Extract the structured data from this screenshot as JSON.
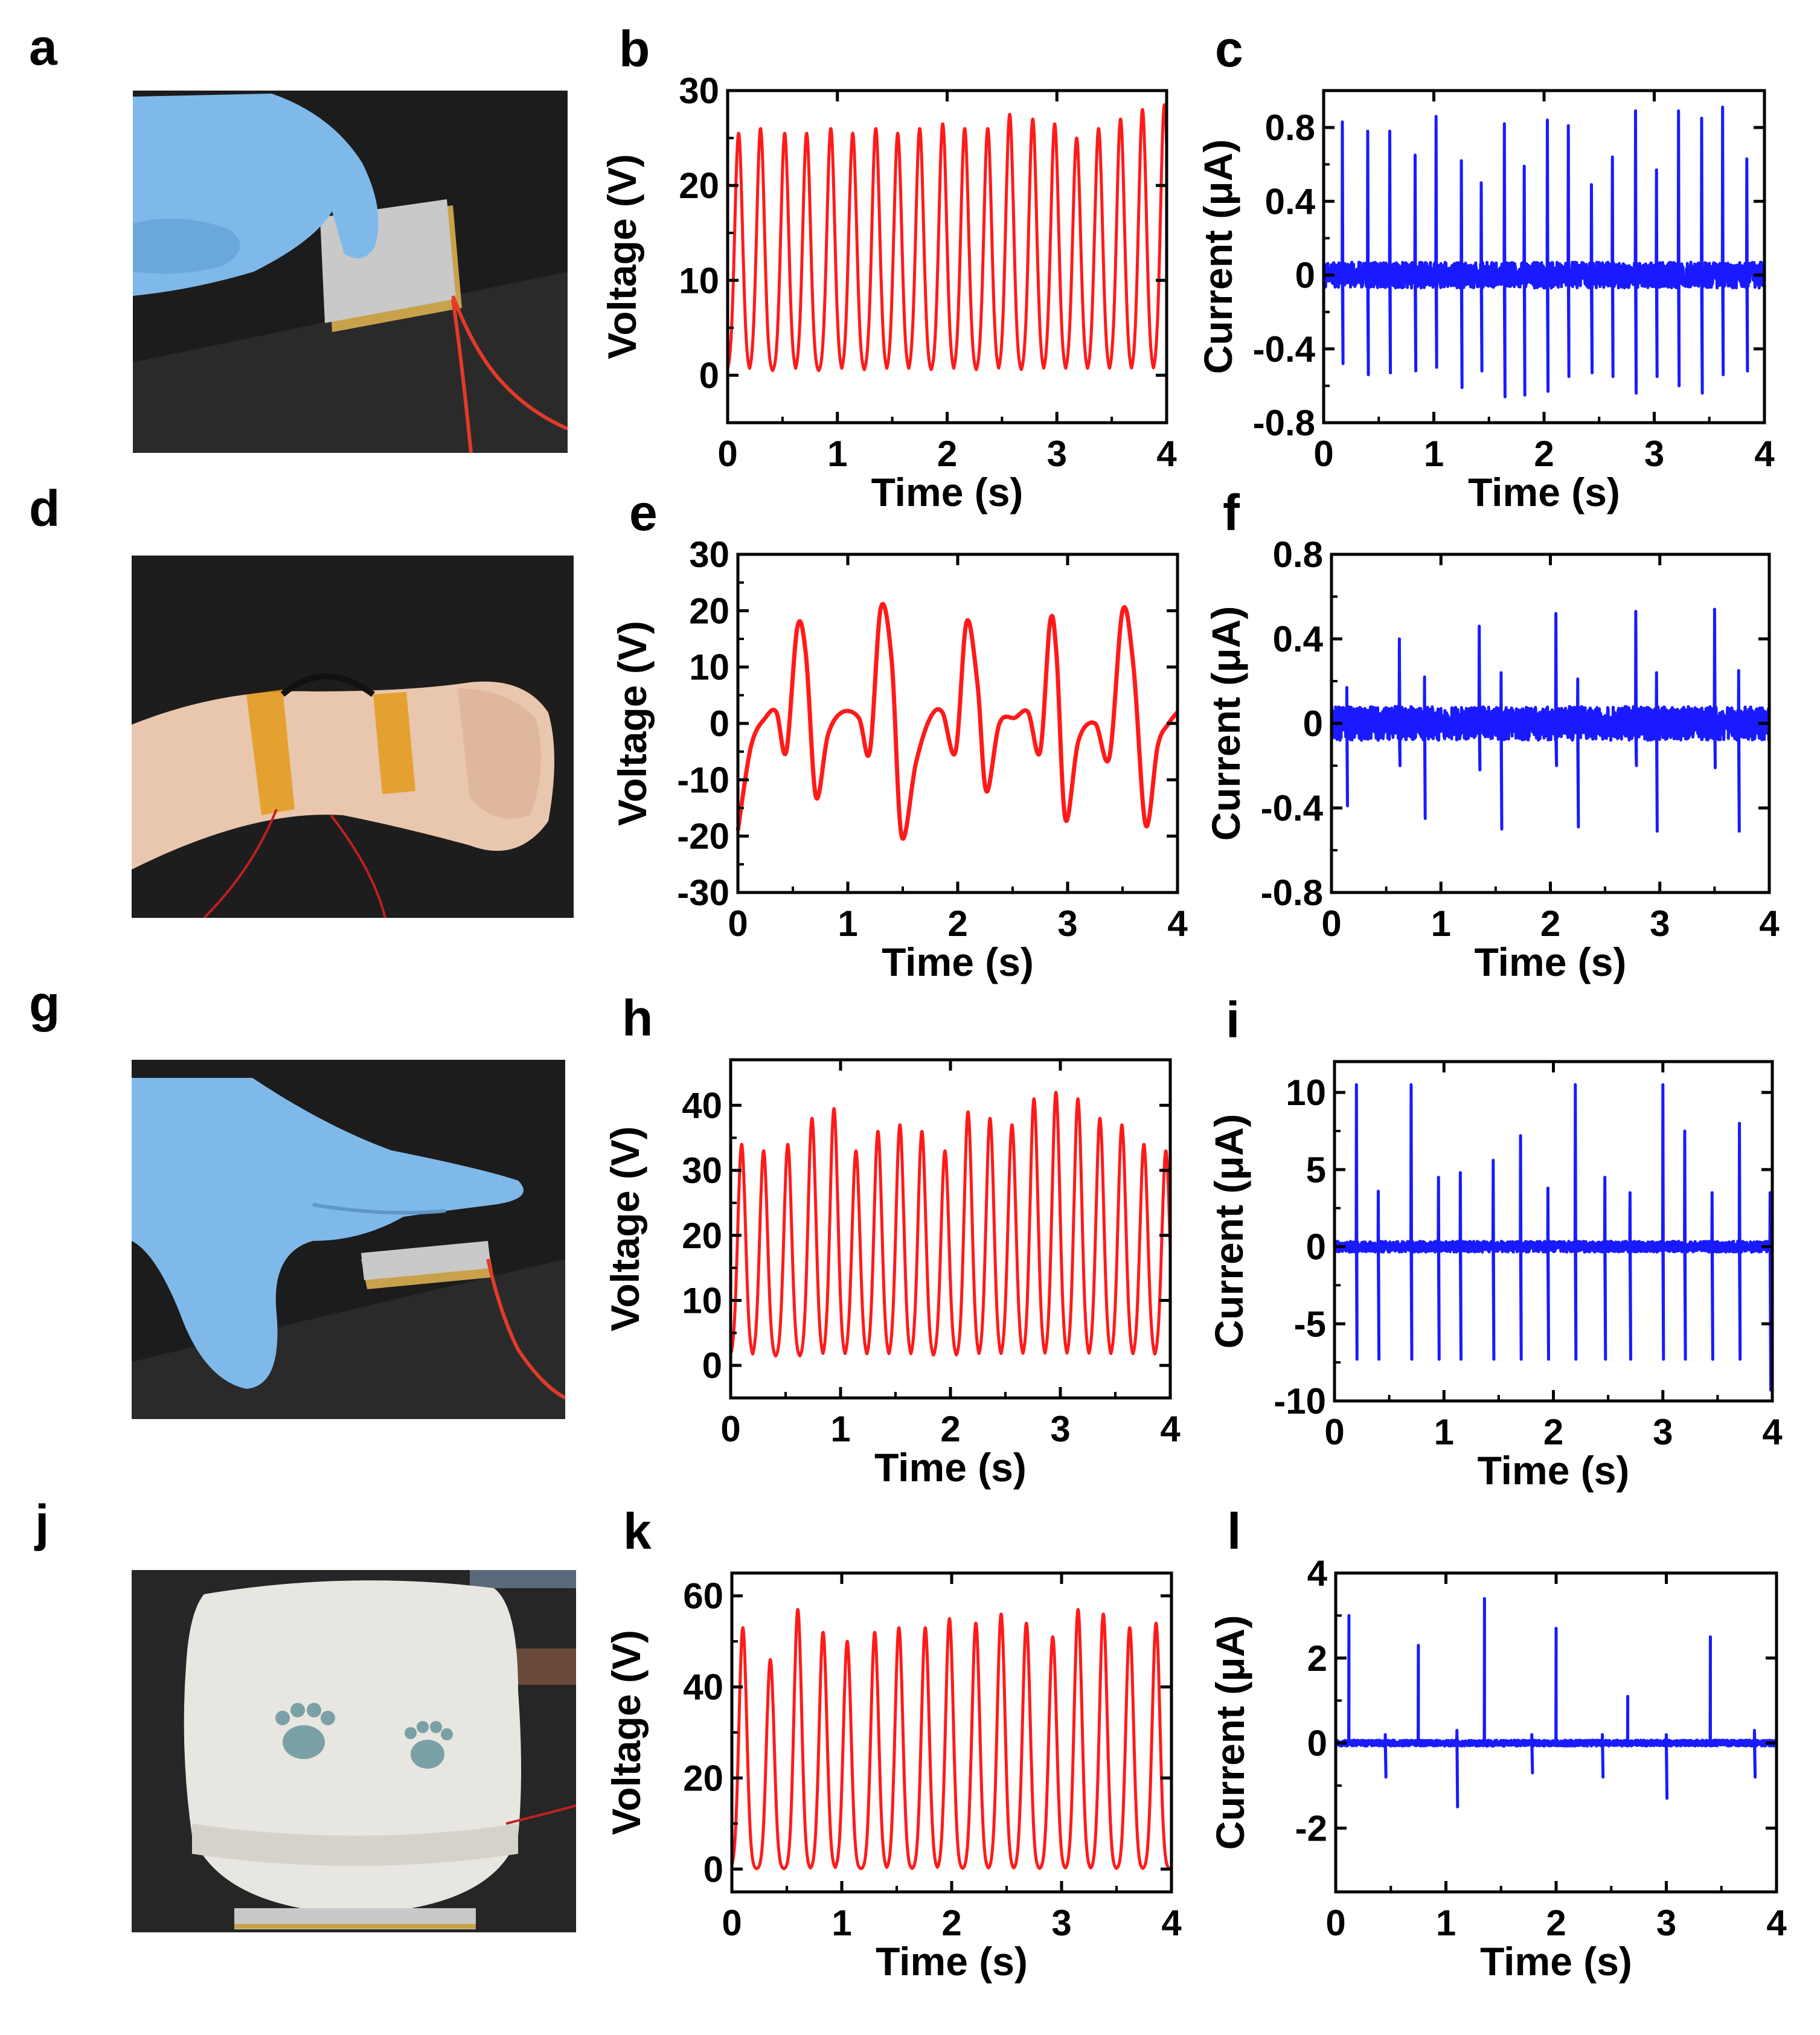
{
  "figure": {
    "colors": {
      "voltage_trace": "#ff1a1a",
      "current_trace": "#1a1aff",
      "axis": "#000000"
    },
    "panels": [
      {
        "id": "a",
        "label": "a",
        "kind": "photo",
        "content": "gloved-finger-pressing-device",
        "colors": {
          "background": "#1c1c1c",
          "glove": "#7fb9ea",
          "device": "#c9c9c9"
        }
      },
      {
        "id": "d",
        "label": "d",
        "kind": "photo",
        "content": "device-strapped-to-wrist",
        "colors": {
          "background": "#1d1d1d",
          "skin": "#e9c7ae",
          "tape": "#e39a1a"
        }
      },
      {
        "id": "g",
        "label": "g",
        "kind": "photo",
        "content": "gloved-palm-pressing-device",
        "colors": {
          "background": "#1c1c1c",
          "glove": "#7fb9ea",
          "device": "#c9c9c9"
        }
      },
      {
        "id": "j",
        "label": "j",
        "kind": "photo",
        "content": "shoe-heel-stepping-on-device",
        "colors": {
          "background": "#262626",
          "shoe": "#e8e6e0",
          "paw_print": "#7aa1a5"
        }
      }
    ]
  },
  "chart_data": [
    {
      "id": "b",
      "label": "b",
      "type": "line",
      "signal": "voltage",
      "xlabel": "Time (s)",
      "ylabel": "Voltage (V)",
      "xlim": [
        0,
        4
      ],
      "ylim": [
        -5,
        30
      ],
      "xticks": [
        0,
        1,
        2,
        3,
        4
      ],
      "yticks": [
        0,
        10,
        20,
        30
      ],
      "x_tick_labels": [
        "0",
        "1",
        "2",
        "3",
        "4"
      ],
      "y_tick_labels": [
        "0",
        "10",
        "20",
        "30"
      ],
      "shape": "pulse",
      "baseline": 0.3,
      "peak_times": [
        0.1,
        0.3,
        0.52,
        0.72,
        0.94,
        1.14,
        1.35,
        1.55,
        1.75,
        1.96,
        2.16,
        2.37,
        2.57,
        2.78,
        2.98,
        3.18,
        3.38,
        3.58,
        3.78,
        3.98
      ],
      "peak_values": [
        25.5,
        26,
        25.5,
        25.5,
        26,
        25.5,
        26,
        25.5,
        26,
        26.5,
        26,
        26,
        27.5,
        27,
        26.5,
        25,
        26,
        27,
        28,
        28.5
      ],
      "grid": false
    },
    {
      "id": "c",
      "label": "c",
      "type": "line",
      "signal": "current",
      "xlabel": "Time (s)",
      "ylabel": "Current (μA)",
      "xlim": [
        0,
        4
      ],
      "ylim": [
        -0.8,
        1.0
      ],
      "xticks": [
        0,
        1,
        2,
        3,
        4
      ],
      "yticks": [
        -0.8,
        -0.4,
        0,
        0.4,
        0.8
      ],
      "x_tick_labels": [
        "0",
        "1",
        "2",
        "3",
        "4"
      ],
      "y_tick_labels": [
        "-0.8",
        "-0.4",
        "0",
        "0.4",
        "0.8"
      ],
      "shape": "spike",
      "noise": 0.07,
      "events": [
        {
          "t": 0.17,
          "pos": 0.83,
          "neg": -0.48
        },
        {
          "t": 0.4,
          "pos": 0.78,
          "neg": -0.54
        },
        {
          "t": 0.6,
          "pos": 0.78,
          "neg": -0.53
        },
        {
          "t": 0.83,
          "pos": 0.65,
          "neg": -0.52
        },
        {
          "t": 1.02,
          "pos": 0.86,
          "neg": -0.5
        },
        {
          "t": 1.25,
          "pos": 0.62,
          "neg": -0.61
        },
        {
          "t": 1.43,
          "pos": 0.5,
          "neg": -0.52
        },
        {
          "t": 1.64,
          "pos": 0.82,
          "neg": -0.66
        },
        {
          "t": 1.82,
          "pos": 0.59,
          "neg": -0.65
        },
        {
          "t": 2.03,
          "pos": 0.84,
          "neg": -0.63
        },
        {
          "t": 2.22,
          "pos": 0.81,
          "neg": -0.55
        },
        {
          "t": 2.43,
          "pos": 0.49,
          "neg": -0.53
        },
        {
          "t": 2.62,
          "pos": 0.64,
          "neg": -0.55
        },
        {
          "t": 2.83,
          "pos": 0.89,
          "neg": -0.64
        },
        {
          "t": 3.02,
          "pos": 0.57,
          "neg": -0.55
        },
        {
          "t": 3.22,
          "pos": 0.89,
          "neg": -0.6
        },
        {
          "t": 3.43,
          "pos": 0.85,
          "neg": -0.64
        },
        {
          "t": 3.62,
          "pos": 0.91,
          "neg": -0.54
        },
        {
          "t": 3.84,
          "pos": 0.63,
          "neg": -0.52
        }
      ],
      "grid": false
    },
    {
      "id": "e",
      "label": "e",
      "type": "line",
      "signal": "voltage",
      "xlabel": "Time (s)",
      "ylabel": "Voltage (V)",
      "xlim": [
        0,
        4
      ],
      "ylim": [
        -30,
        30
      ],
      "xticks": [
        0,
        1,
        2,
        3,
        4
      ],
      "yticks": [
        -30,
        -20,
        -10,
        0,
        10,
        20,
        30
      ],
      "x_tick_labels": [
        "0",
        "1",
        "2",
        "3",
        "4"
      ],
      "y_tick_labels": [
        "-30",
        "-20",
        "-10",
        "0",
        "10",
        "20",
        "30"
      ],
      "shape": "keypoints",
      "x": [
        0,
        0.12,
        0.25,
        0.35,
        0.44,
        0.54,
        0.62,
        0.71,
        0.82,
        0.95,
        1.1,
        1.2,
        1.3,
        1.4,
        1.49,
        1.62,
        1.75,
        1.86,
        1.98,
        2.08,
        2.18,
        2.26,
        2.38,
        2.52,
        2.64,
        2.75,
        2.84,
        2.9,
        2.98,
        3.1,
        3.25,
        3.38,
        3.5,
        3.6,
        3.71,
        3.82,
        3.92,
        4.0
      ],
      "y": [
        -19,
        -4,
        1,
        2,
        -5,
        17,
        12,
        -13,
        -2,
        2,
        1,
        -5,
        20.5,
        11,
        -20,
        -7,
        1,
        2,
        -5,
        18,
        7,
        -12,
        0,
        1,
        2,
        -5,
        18,
        12,
        -17,
        -3,
        0,
        -6,
        20,
        10,
        -18,
        -4,
        0,
        2
      ],
      "grid": false
    },
    {
      "id": "f",
      "label": "f",
      "type": "line",
      "signal": "current",
      "xlabel": "Time (s)",
      "ylabel": "Current (μA)",
      "xlim": [
        0,
        4
      ],
      "ylim": [
        -0.8,
        0.8
      ],
      "xticks": [
        0,
        1,
        2,
        3,
        4
      ],
      "yticks": [
        -0.8,
        -0.4,
        0,
        0.4,
        0.8
      ],
      "x_tick_labels": [
        "0",
        "1",
        "2",
        "3",
        "4"
      ],
      "y_tick_labels": [
        "-0.8",
        "-0.4",
        "0",
        "0.4",
        "0.8"
      ],
      "shape": "spike",
      "noise": 0.08,
      "events": [
        {
          "t": 0.14,
          "pos": 0.17,
          "neg": -0.39
        },
        {
          "t": 0.62,
          "pos": 0.4,
          "neg": -0.2
        },
        {
          "t": 0.85,
          "pos": 0.22,
          "neg": -0.45
        },
        {
          "t": 1.35,
          "pos": 0.46,
          "neg": -0.22
        },
        {
          "t": 1.55,
          "pos": 0.24,
          "neg": -0.5
        },
        {
          "t": 2.05,
          "pos": 0.52,
          "neg": -0.2
        },
        {
          "t": 2.25,
          "pos": 0.21,
          "neg": -0.49
        },
        {
          "t": 2.78,
          "pos": 0.53,
          "neg": -0.2
        },
        {
          "t": 2.97,
          "pos": 0.24,
          "neg": -0.51
        },
        {
          "t": 3.5,
          "pos": 0.54,
          "neg": -0.21
        },
        {
          "t": 3.72,
          "pos": 0.25,
          "neg": -0.51
        }
      ],
      "grid": false
    },
    {
      "id": "h",
      "label": "h",
      "type": "line",
      "signal": "voltage",
      "xlabel": "Time (s)",
      "ylabel": "Voltage (V)",
      "xlim": [
        0,
        4
      ],
      "ylim": [
        -5,
        47
      ],
      "xticks": [
        0,
        1,
        2,
        3,
        4
      ],
      "yticks": [
        0,
        10,
        20,
        30,
        40
      ],
      "x_tick_labels": [
        "0",
        "1",
        "2",
        "3",
        "4"
      ],
      "y_tick_labels": [
        "0",
        "10",
        "20",
        "30",
        "40"
      ],
      "shape": "pulse",
      "baseline": 1.2,
      "peak_times": [
        0.1,
        0.3,
        0.52,
        0.74,
        0.94,
        1.14,
        1.34,
        1.54,
        1.74,
        1.95,
        2.16,
        2.36,
        2.56,
        2.76,
        2.96,
        3.16,
        3.36,
        3.56,
        3.76,
        3.96
      ],
      "peak_values": [
        34,
        33,
        34,
        38,
        39.5,
        33,
        36,
        37,
        36,
        33,
        39,
        38,
        37,
        41,
        42,
        41,
        38,
        37,
        34,
        33
      ],
      "grid": false
    },
    {
      "id": "i",
      "label": "i",
      "type": "line",
      "signal": "current",
      "xlabel": "Time (s)",
      "ylabel": "Current (μA)",
      "xlim": [
        0,
        4
      ],
      "ylim": [
        -10,
        12
      ],
      "xticks": [
        0,
        1,
        2,
        3,
        4
      ],
      "yticks": [
        -10,
        -5,
        0,
        5,
        10
      ],
      "x_tick_labels": [
        "0",
        "1",
        "2",
        "3",
        "4"
      ],
      "y_tick_labels": [
        "-10",
        "-5",
        "0",
        "5",
        "10"
      ],
      "shape": "spike",
      "noise": 0.35,
      "events": [
        {
          "t": 0.2,
          "pos": 10.5,
          "neg": -7.3
        },
        {
          "t": 0.4,
          "pos": 3.6,
          "neg": -7.3
        },
        {
          "t": 0.7,
          "pos": 10.5,
          "neg": -7.3
        },
        {
          "t": 0.95,
          "pos": 4.5,
          "neg": -7.3
        },
        {
          "t": 1.15,
          "pos": 4.8,
          "neg": -7.3
        },
        {
          "t": 1.45,
          "pos": 5.6,
          "neg": -7.3
        },
        {
          "t": 1.7,
          "pos": 7.2,
          "neg": -7.3
        },
        {
          "t": 1.95,
          "pos": 3.8,
          "neg": -7.3
        },
        {
          "t": 2.2,
          "pos": 10.5,
          "neg": -7.3
        },
        {
          "t": 2.47,
          "pos": 4.5,
          "neg": -7.3
        },
        {
          "t": 2.7,
          "pos": 3.5,
          "neg": -7.3
        },
        {
          "t": 3.0,
          "pos": 10.5,
          "neg": -7.3
        },
        {
          "t": 3.2,
          "pos": 7.5,
          "neg": -7.3
        },
        {
          "t": 3.45,
          "pos": 3.5,
          "neg": -7.3
        },
        {
          "t": 3.7,
          "pos": 8.0,
          "neg": -7.3
        },
        {
          "t": 3.98,
          "pos": 3.5,
          "neg": -9.3
        }
      ],
      "grid": false
    },
    {
      "id": "k",
      "label": "k",
      "type": "line",
      "signal": "voltage",
      "xlabel": "Time (s)",
      "ylabel": "Voltage (V)",
      "xlim": [
        0,
        4
      ],
      "ylim": [
        -5,
        65
      ],
      "xticks": [
        0,
        1,
        2,
        3,
        4
      ],
      "yticks": [
        0,
        20,
        40,
        60
      ],
      "x_tick_labels": [
        "0",
        "1",
        "2",
        "3",
        "4"
      ],
      "y_tick_labels": [
        "0",
        "20",
        "40",
        "60"
      ],
      "shape": "pulse",
      "baseline": 0,
      "peak_times": [
        0.1,
        0.35,
        0.6,
        0.83,
        1.05,
        1.3,
        1.52,
        1.76,
        1.98,
        2.22,
        2.45,
        2.68,
        2.92,
        3.15,
        3.38,
        3.62,
        3.86
      ],
      "peak_values": [
        53,
        46,
        57,
        52,
        50,
        52,
        53,
        53,
        55,
        54,
        56,
        54,
        51,
        57,
        56,
        53,
        54
      ],
      "grid": false
    },
    {
      "id": "l",
      "label": "l",
      "type": "line",
      "signal": "current",
      "xlabel": "Time (s)",
      "ylabel": "Current (μA)",
      "xlim": [
        0,
        4
      ],
      "ylim": [
        -3.5,
        4
      ],
      "xticks": [
        0,
        1,
        2,
        3,
        4
      ],
      "yticks": [
        -2,
        0,
        2,
        4
      ],
      "x_tick_labels": [
        "0",
        "1",
        "2",
        "3",
        "4"
      ],
      "y_tick_labels": [
        "-2",
        "0",
        "2",
        "4"
      ],
      "shape": "spike",
      "noise": 0.07,
      "events": [
        {
          "t": 0.12,
          "pos": 3.0,
          "neg": 0
        },
        {
          "t": 0.45,
          "pos": 0.2,
          "neg": -0.8
        },
        {
          "t": 0.75,
          "pos": 2.3,
          "neg": 0
        },
        {
          "t": 1.1,
          "pos": 0.3,
          "neg": -1.5
        },
        {
          "t": 1.35,
          "pos": 3.4,
          "neg": 0
        },
        {
          "t": 1.78,
          "pos": 0.2,
          "neg": -0.7
        },
        {
          "t": 2.0,
          "pos": 2.7,
          "neg": 0
        },
        {
          "t": 2.42,
          "pos": 0.2,
          "neg": -0.8
        },
        {
          "t": 2.65,
          "pos": 1.1,
          "neg": 0
        },
        {
          "t": 3.0,
          "pos": 0.2,
          "neg": -1.3
        },
        {
          "t": 3.4,
          "pos": 2.5,
          "neg": 0
        },
        {
          "t": 3.8,
          "pos": 0.3,
          "neg": -0.8
        }
      ],
      "grid": false
    }
  ]
}
